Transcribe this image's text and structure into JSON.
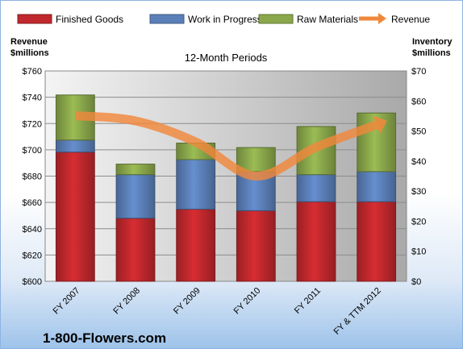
{
  "chart_data": {
    "type": "bar",
    "stacked": true,
    "title": "12-Month Periods",
    "ylabel_left": [
      "Revenue",
      "$millions"
    ],
    "ylabel_right": [
      "Inventory",
      "$millions"
    ],
    "categories": [
      "FY 2007",
      "FY 2008",
      "FY 2009",
      "FY 2010",
      "FY 2011",
      "FY & TTM 2012"
    ],
    "ylim_left": [
      600,
      760
    ],
    "ylim_right": [
      0,
      70
    ],
    "yticks_left": [
      "$600",
      "$620",
      "$640",
      "$660",
      "$680",
      "$700",
      "$720",
      "$740",
      "$760"
    ],
    "yticks_right": [
      "$0",
      "$10",
      "$20",
      "$30",
      "$40",
      "$50",
      "$60",
      "$70"
    ],
    "series": [
      {
        "name": "Finished Goods",
        "axis": "right",
        "color": "#c0282d",
        "values": [
          43,
          21,
          24,
          23.5,
          26.5,
          26.5
        ]
      },
      {
        "name": "Work in Progress",
        "axis": "right",
        "color": "#5b80b9",
        "values": [
          4,
          14.5,
          16.5,
          13,
          9,
          10
        ]
      },
      {
        "name": "Raw Materials",
        "axis": "right",
        "color": "#8aa84b",
        "values": [
          15,
          3.5,
          5.5,
          8,
          16,
          19.5
        ]
      },
      {
        "name": "Revenue",
        "axis": "left",
        "type": "line",
        "color": "#f0883c",
        "values": [
          726,
          722,
          706,
          680,
          702,
          719
        ]
      }
    ],
    "legend_position": "top",
    "grid": true
  },
  "brand": "1-800-Flowers.com"
}
